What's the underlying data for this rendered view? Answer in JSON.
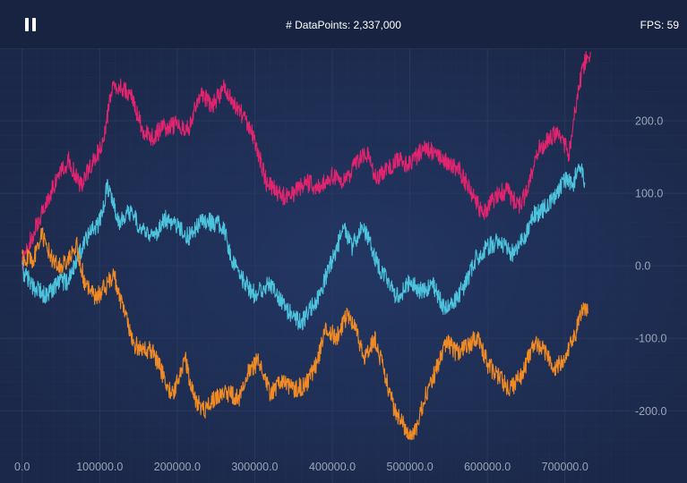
{
  "toolbar": {
    "pause_icon": "pause-icon",
    "datapoints_label": "# DataPoints: 2,337,000",
    "fps_label": "FPS: 59"
  },
  "colors": {
    "background": "#1c2a4a",
    "toolbar": "#182342",
    "grid": "#2a3a5e",
    "axis_text": "#9aa4b8",
    "series": [
      "#e0246e",
      "#4cc2dc",
      "#f08a24"
    ]
  },
  "chart_data": {
    "type": "line",
    "x_ticks": [
      0,
      100000,
      200000,
      300000,
      400000,
      500000,
      600000,
      700000
    ],
    "x_tick_labels": [
      "0.0",
      "100000.0",
      "200000.0",
      "300000.0",
      "400000.0",
      "500000.0",
      "600000.0",
      "700000.0"
    ],
    "y_ticks": [
      200,
      100,
      0,
      -100,
      -200
    ],
    "y_tick_labels": [
      "200.0",
      "100.0",
      "0.0",
      "-100.0",
      "-200.0"
    ],
    "xlim": [
      -17000,
      780000
    ],
    "ylim": [
      -265,
      300
    ],
    "y_axis_position": "right",
    "grid": true,
    "series": [
      {
        "color": "#e0246e",
        "points": [
          [
            0,
            5
          ],
          [
            20000,
            60
          ],
          [
            45000,
            120
          ],
          [
            60000,
            145
          ],
          [
            75000,
            110
          ],
          [
            90000,
            140
          ],
          [
            105000,
            170
          ],
          [
            115000,
            240
          ],
          [
            125000,
            250
          ],
          [
            140000,
            235
          ],
          [
            155000,
            190
          ],
          [
            165000,
            175
          ],
          [
            180000,
            190
          ],
          [
            200000,
            195
          ],
          [
            215000,
            190
          ],
          [
            230000,
            240
          ],
          [
            245000,
            220
          ],
          [
            260000,
            245
          ],
          [
            280000,
            215
          ],
          [
            300000,
            175
          ],
          [
            315000,
            115
          ],
          [
            335000,
            95
          ],
          [
            350000,
            100
          ],
          [
            365000,
            115
          ],
          [
            380000,
            110
          ],
          [
            400000,
            125
          ],
          [
            415000,
            115
          ],
          [
            430000,
            140
          ],
          [
            445000,
            155
          ],
          [
            455000,
            120
          ],
          [
            470000,
            135
          ],
          [
            485000,
            145
          ],
          [
            500000,
            140
          ],
          [
            520000,
            165
          ],
          [
            535000,
            150
          ],
          [
            550000,
            140
          ],
          [
            565000,
            130
          ],
          [
            580000,
            100
          ],
          [
            595000,
            70
          ],
          [
            610000,
            95
          ],
          [
            625000,
            105
          ],
          [
            640000,
            80
          ],
          [
            650000,
            100
          ],
          [
            665000,
            160
          ],
          [
            680000,
            175
          ],
          [
            690000,
            185
          ],
          [
            705000,
            155
          ],
          [
            715000,
            230
          ],
          [
            725000,
            280
          ],
          [
            733000,
            295
          ]
        ]
      },
      {
        "color": "#4cc2dc",
        "points": [
          [
            0,
            -5
          ],
          [
            15000,
            -30
          ],
          [
            30000,
            -40
          ],
          [
            45000,
            -25
          ],
          [
            60000,
            -20
          ],
          [
            75000,
            20
          ],
          [
            90000,
            50
          ],
          [
            100000,
            60
          ],
          [
            110000,
            110
          ],
          [
            125000,
            60
          ],
          [
            140000,
            75
          ],
          [
            155000,
            50
          ],
          [
            170000,
            40
          ],
          [
            185000,
            65
          ],
          [
            200000,
            55
          ],
          [
            215000,
            40
          ],
          [
            230000,
            60
          ],
          [
            245000,
            60
          ],
          [
            260000,
            55
          ],
          [
            270000,
            10
          ],
          [
            285000,
            -20
          ],
          [
            300000,
            -40
          ],
          [
            320000,
            -25
          ],
          [
            335000,
            -50
          ],
          [
            345000,
            -65
          ],
          [
            360000,
            -80
          ],
          [
            375000,
            -55
          ],
          [
            385000,
            -35
          ],
          [
            400000,
            10
          ],
          [
            415000,
            50
          ],
          [
            425000,
            25
          ],
          [
            440000,
            55
          ],
          [
            455000,
            10
          ],
          [
            470000,
            -20
          ],
          [
            485000,
            -45
          ],
          [
            500000,
            -20
          ],
          [
            515000,
            -35
          ],
          [
            530000,
            -25
          ],
          [
            545000,
            -60
          ],
          [
            555000,
            -50
          ],
          [
            570000,
            -30
          ],
          [
            585000,
            10
          ],
          [
            600000,
            25
          ],
          [
            615000,
            35
          ],
          [
            630000,
            15
          ],
          [
            645000,
            35
          ],
          [
            660000,
            70
          ],
          [
            675000,
            80
          ],
          [
            690000,
            100
          ],
          [
            700000,
            120
          ],
          [
            710000,
            110
          ],
          [
            718000,
            140
          ],
          [
            726000,
            115
          ]
        ]
      },
      {
        "color": "#f08a24",
        "points": [
          [
            0,
            10
          ],
          [
            15000,
            10
          ],
          [
            25000,
            45
          ],
          [
            38000,
            10
          ],
          [
            50000,
            0
          ],
          [
            60000,
            10
          ],
          [
            70000,
            30
          ],
          [
            80000,
            -20
          ],
          [
            95000,
            -45
          ],
          [
            110000,
            -25
          ],
          [
            118000,
            -10
          ],
          [
            130000,
            -60
          ],
          [
            145000,
            -110
          ],
          [
            160000,
            -115
          ],
          [
            170000,
            -120
          ],
          [
            185000,
            -160
          ],
          [
            195000,
            -180
          ],
          [
            210000,
            -125
          ],
          [
            222000,
            -185
          ],
          [
            235000,
            -200
          ],
          [
            250000,
            -180
          ],
          [
            265000,
            -175
          ],
          [
            280000,
            -185
          ],
          [
            290000,
            -150
          ],
          [
            305000,
            -130
          ],
          [
            320000,
            -175
          ],
          [
            335000,
            -160
          ],
          [
            350000,
            -170
          ],
          [
            365000,
            -165
          ],
          [
            380000,
            -135
          ],
          [
            392000,
            -85
          ],
          [
            405000,
            -100
          ],
          [
            418000,
            -70
          ],
          [
            430000,
            -80
          ],
          [
            440000,
            -130
          ],
          [
            455000,
            -100
          ],
          [
            468000,
            -150
          ],
          [
            480000,
            -200
          ],
          [
            495000,
            -225
          ],
          [
            505000,
            -235
          ],
          [
            520000,
            -180
          ],
          [
            535000,
            -140
          ],
          [
            548000,
            -105
          ],
          [
            560000,
            -120
          ],
          [
            575000,
            -110
          ],
          [
            588000,
            -95
          ],
          [
            600000,
            -135
          ],
          [
            615000,
            -155
          ],
          [
            630000,
            -170
          ],
          [
            645000,
            -150
          ],
          [
            660000,
            -105
          ],
          [
            675000,
            -120
          ],
          [
            688000,
            -140
          ],
          [
            700000,
            -125
          ],
          [
            712000,
            -100
          ],
          [
            722000,
            -60
          ],
          [
            730000,
            -65
          ]
        ]
      }
    ]
  }
}
